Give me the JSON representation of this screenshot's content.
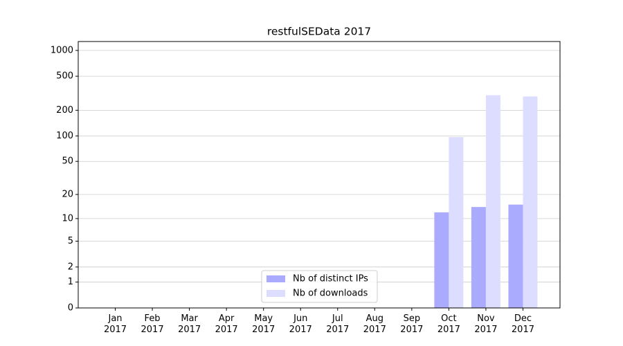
{
  "chart_data": {
    "type": "bar",
    "title": "restfulSEData 2017",
    "categories": [
      "Jan\n2017",
      "Feb\n2017",
      "Mar\n2017",
      "Apr\n2017",
      "May\n2017",
      "Jun\n2017",
      "Jul\n2017",
      "Aug\n2017",
      "Sep\n2017",
      "Oct\n2017",
      "Nov\n2017",
      "Dec\n2017"
    ],
    "series": [
      {
        "name": "Nb of distinct IPs",
        "color": "#aaaaff",
        "values": [
          0,
          0,
          0,
          0,
          0,
          0,
          0,
          0,
          0,
          12,
          14,
          15
        ]
      },
      {
        "name": "Nb of downloads",
        "color": "#ddddff",
        "values": [
          0,
          0,
          0,
          0,
          0,
          0,
          0,
          0,
          0,
          97,
          300,
          290
        ]
      }
    ],
    "ylim": [
      0,
      1270
    ],
    "yticks": [
      0,
      1,
      2,
      5,
      10,
      20,
      50,
      100,
      200,
      500,
      1000
    ],
    "yscale": "log1p",
    "grid": true,
    "legend": "lower center"
  }
}
